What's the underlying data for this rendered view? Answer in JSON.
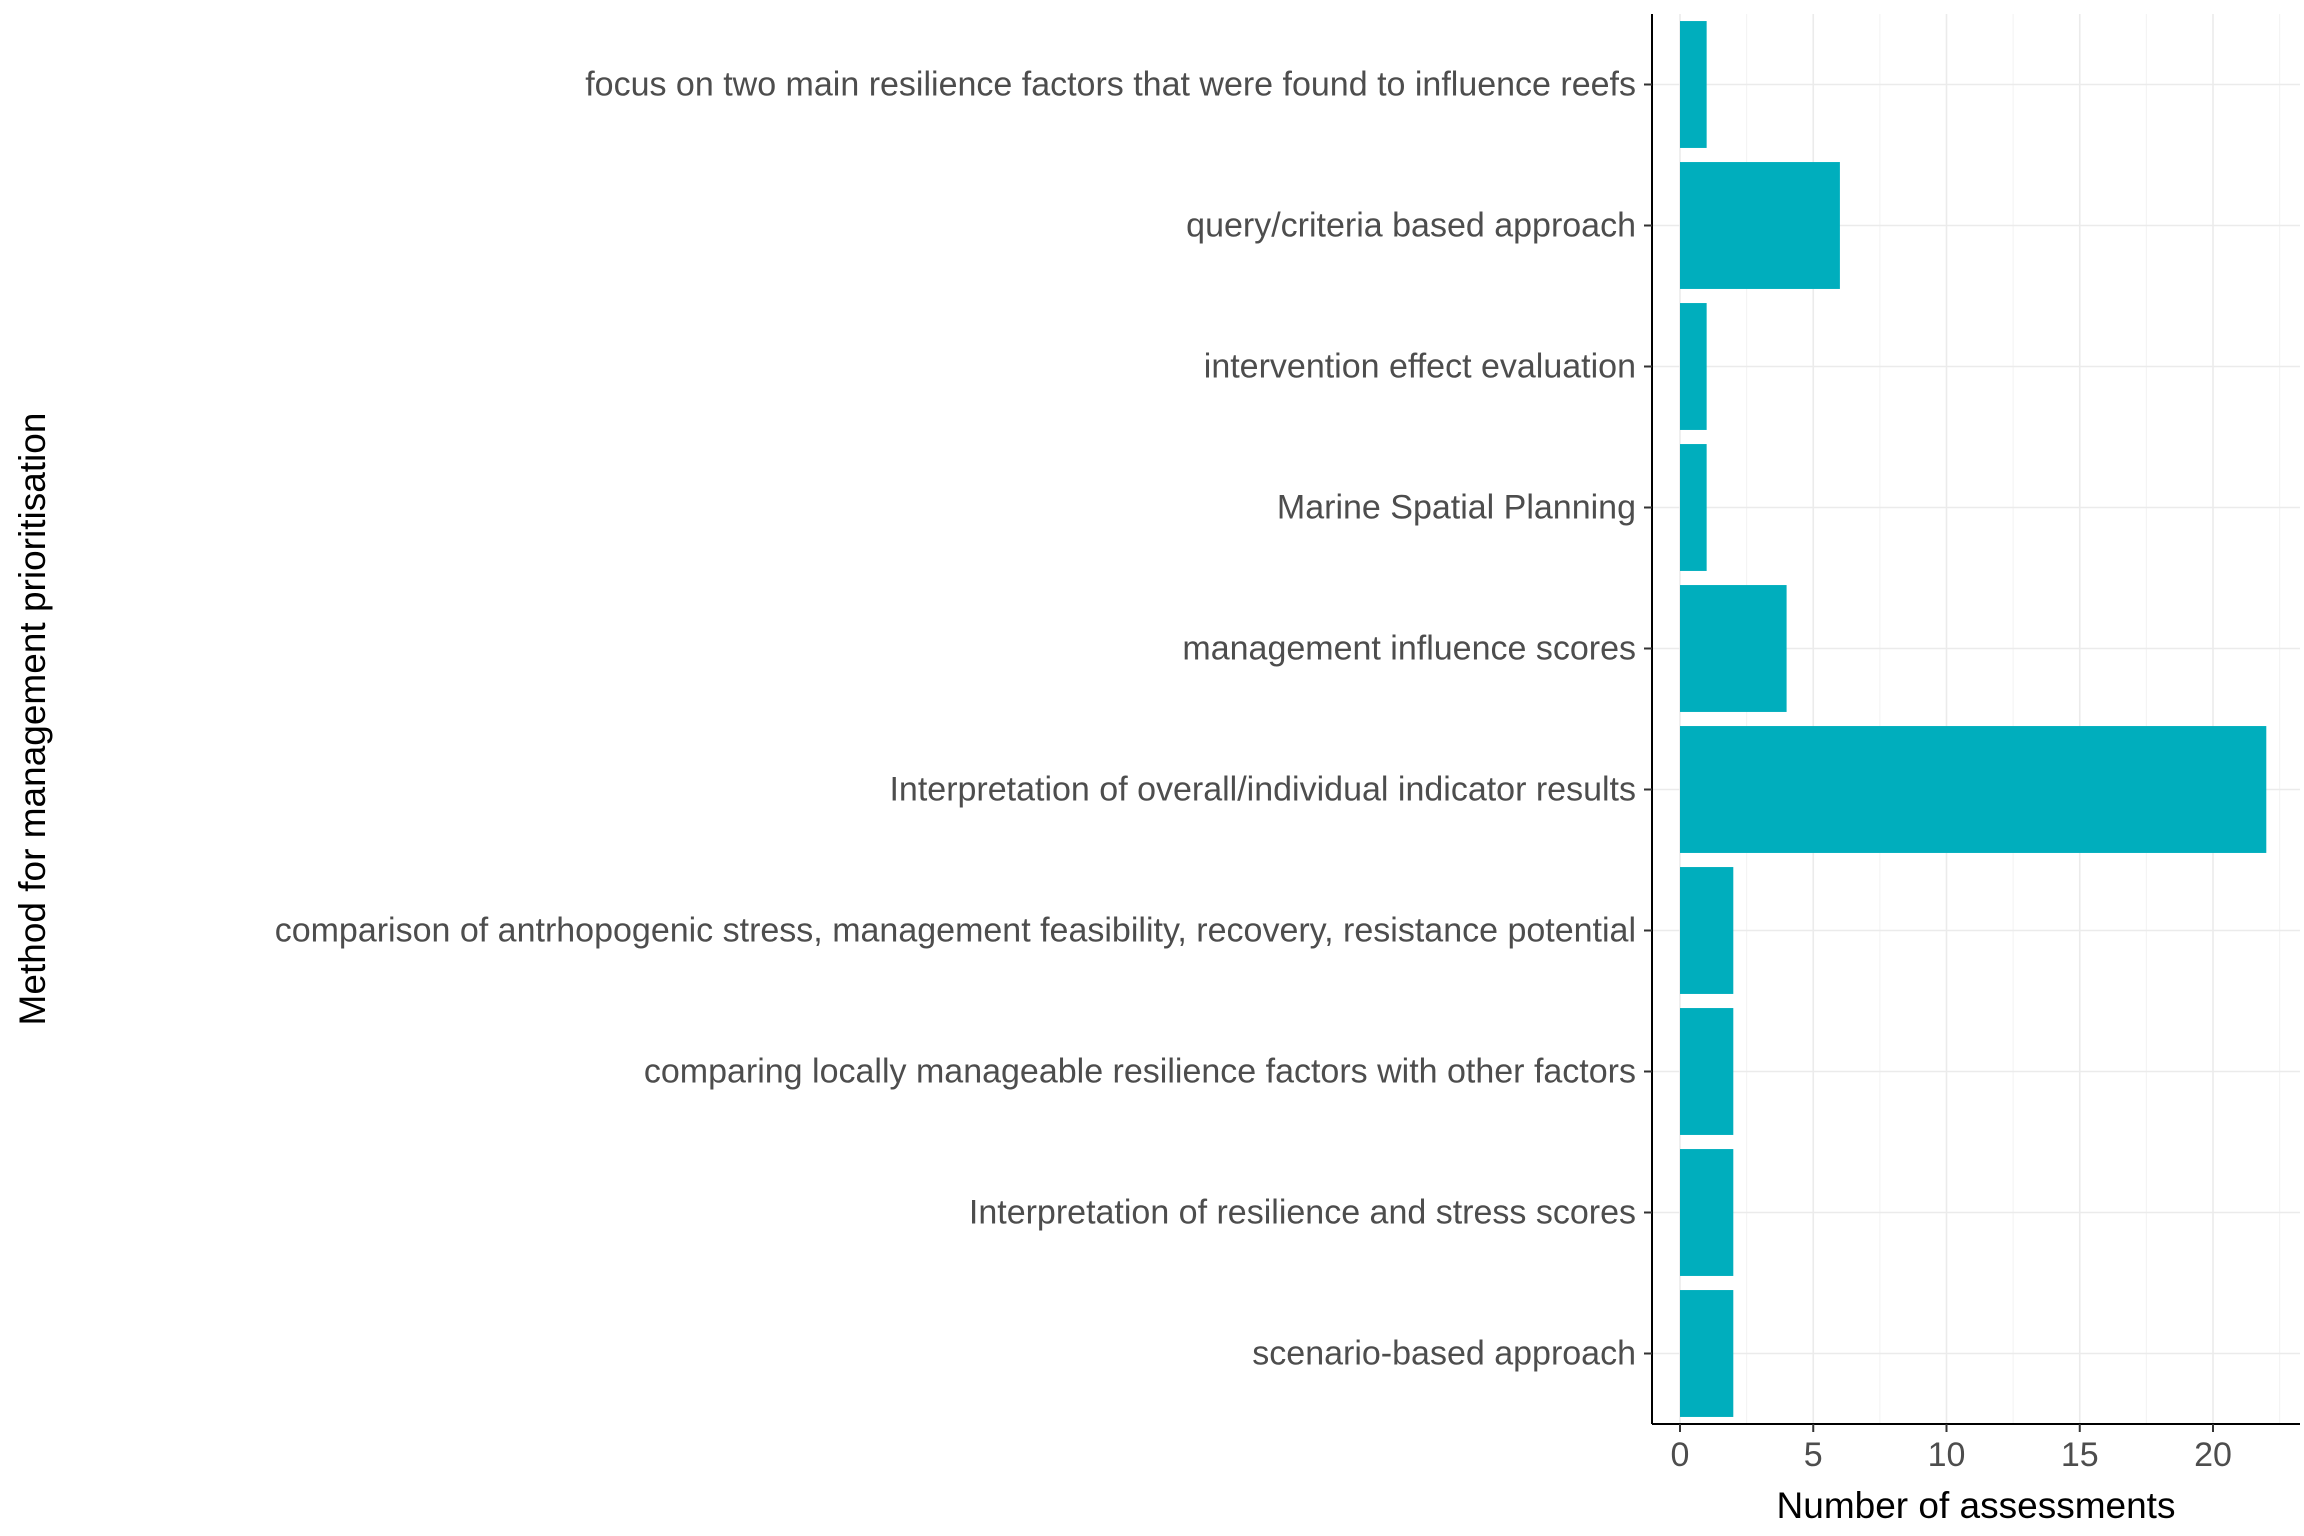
{
  "chart_data": {
    "type": "bar",
    "orientation": "horizontal",
    "categories": [
      "focus on two main resilience factors that were found to influence reefs",
      "query/criteria based approach",
      "intervention effect evaluation",
      "Marine Spatial Planning",
      "management influence scores",
      "Interpretation of overall/individual indicator results",
      "comparison of antrhopogenic stress, management feasibility, recovery, resistance potential",
      "comparing locally manageable resilience factors with other factors",
      "Interpretation of resilience and stress scores",
      "scenario-based approach"
    ],
    "values": [
      1,
      6,
      1,
      1,
      4,
      22,
      2,
      2,
      2,
      2
    ],
    "xlabel": "Number of assessments",
    "ylabel": "Method for management prioritisation",
    "xlim": [
      0,
      23
    ],
    "xticks": [
      0,
      5,
      10,
      15,
      20
    ],
    "xtick_labels": [
      "0",
      "5",
      "10",
      "15",
      "20"
    ],
    "grid": true,
    "bar_color": "#00AEBD"
  }
}
